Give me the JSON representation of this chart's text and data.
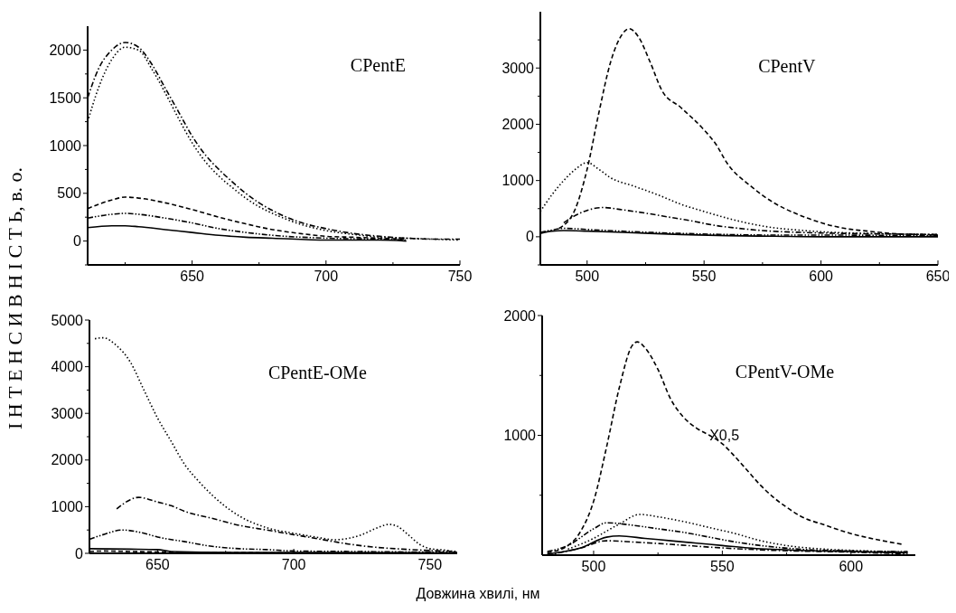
{
  "chart_data": [
    {
      "type": "line",
      "title": "CPentE",
      "ylabel": "І Н Т Е Н С И В Н І С Т Ь, в. о.",
      "xlim": [
        611,
        750
      ],
      "ylim": [
        -250,
        2250
      ],
      "xticks": [
        {
          "value": 625,
          "label": null
        },
        650,
        {
          "value": 675,
          "label": null
        },
        700,
        {
          "value": 725,
          "label": null
        },
        750
      ],
      "yticks": [
        {
          "value": -250,
          "label": null
        },
        0,
        {
          "value": 250,
          "label": null
        },
        500,
        {
          "value": 750,
          "label": null
        },
        1000,
        {
          "value": 1250,
          "label": null
        },
        1500,
        {
          "value": 1750,
          "label": null
        },
        2000
      ],
      "series": [
        {
          "color": "#000000",
          "line_style": "dashdot",
          "x": [
            611,
            615,
            620,
            625,
            630,
            635,
            640,
            645,
            650,
            655,
            660,
            665,
            670,
            675,
            680,
            690,
            700,
            710,
            720,
            730,
            740,
            750
          ],
          "values": [
            1500,
            1800,
            2000,
            2080,
            2030,
            1850,
            1600,
            1350,
            1100,
            900,
            750,
            620,
            500,
            400,
            320,
            200,
            130,
            80,
            50,
            30,
            20,
            20
          ]
        },
        {
          "color": "#000000",
          "line_style": "dotted",
          "x": [
            611,
            615,
            620,
            625,
            630,
            635,
            640,
            645,
            650,
            655,
            660,
            665,
            670,
            675,
            680,
            690,
            700,
            710,
            720,
            730,
            740,
            750
          ],
          "values": [
            1250,
            1600,
            1900,
            2030,
            2000,
            1800,
            1550,
            1280,
            1030,
            830,
            680,
            560,
            450,
            360,
            290,
            180,
            110,
            70,
            40,
            30,
            20,
            10
          ]
        },
        {
          "color": "#000000",
          "line_style": "dashed",
          "x": [
            611,
            620,
            625,
            630,
            640,
            650,
            660,
            670,
            680,
            690,
            700,
            710,
            720,
            730
          ],
          "values": [
            340,
            430,
            460,
            450,
            400,
            330,
            250,
            180,
            120,
            80,
            50,
            40,
            30,
            20
          ]
        },
        {
          "color": "#000000",
          "line_style": "dashdotdot",
          "x": [
            611,
            620,
            625,
            630,
            640,
            650,
            660,
            670,
            680,
            700,
            720,
            730
          ],
          "values": [
            240,
            280,
            290,
            280,
            240,
            190,
            130,
            90,
            60,
            30,
            20,
            10
          ]
        },
        {
          "color": "#000000",
          "line_style": "solid",
          "x": [
            611,
            620,
            625,
            630,
            640,
            650,
            660,
            670,
            680,
            700,
            720,
            730
          ],
          "values": [
            140,
            160,
            160,
            150,
            120,
            90,
            60,
            40,
            30,
            10,
            10,
            0
          ]
        }
      ]
    },
    {
      "type": "line",
      "title": "CPentV",
      "xlim": [
        480,
        650
      ],
      "ylim": [
        -500,
        4000
      ],
      "xticks": [
        500,
        {
          "value": 525,
          "label": null
        },
        550,
        {
          "value": 575,
          "label": null
        },
        600,
        {
          "value": 625,
          "label": null
        },
        650
      ],
      "yticks": [
        {
          "value": -500,
          "label": null
        },
        0,
        {
          "value": 500,
          "label": null
        },
        1000,
        {
          "value": 1500,
          "label": null
        },
        2000,
        {
          "value": 2500,
          "label": null
        },
        3000,
        {
          "value": 3500,
          "label": null
        }
      ],
      "series": [
        {
          "color": "#000000",
          "line_style": "dashed",
          "x": [
            488,
            495,
            500,
            505,
            510,
            515,
            518,
            522,
            527,
            532,
            540,
            550,
            555,
            560,
            570,
            580,
            590,
            600,
            610,
            620,
            630,
            640,
            650
          ],
          "values": [
            150,
            500,
            1200,
            2200,
            3100,
            3600,
            3700,
            3550,
            3100,
            2600,
            2300,
            1900,
            1650,
            1300,
            900,
            600,
            400,
            250,
            150,
            100,
            60,
            40,
            30
          ]
        },
        {
          "color": "#000000",
          "line_style": "dotted",
          "x": [
            480,
            485,
            490,
            495,
            500,
            505,
            510,
            520,
            530,
            540,
            550,
            560,
            570,
            580,
            590,
            600,
            620,
            650
          ],
          "values": [
            450,
            750,
            1000,
            1200,
            1320,
            1200,
            1050,
            900,
            750,
            580,
            450,
            330,
            230,
            160,
            120,
            90,
            60,
            40
          ]
        },
        {
          "color": "#000000",
          "line_style": "dashdot",
          "x": [
            490,
            495,
            500,
            507,
            515,
            525,
            535,
            545,
            555,
            565,
            575,
            590,
            610,
            630,
            650
          ],
          "values": [
            250,
            380,
            470,
            520,
            480,
            420,
            350,
            280,
            200,
            150,
            110,
            80,
            60,
            50,
            40
          ]
        },
        {
          "color": "#000000",
          "line_style": "solid",
          "x": [
            480,
            485,
            490,
            500,
            520,
            540,
            560,
            580,
            600,
            650
          ],
          "values": [
            60,
            100,
            110,
            100,
            70,
            40,
            20,
            10,
            0,
            0
          ]
        },
        {
          "color": "#000000",
          "line_style": "dashdotdot",
          "x": [
            480,
            485,
            490,
            500,
            520,
            540,
            560,
            580,
            600,
            650
          ],
          "values": [
            80,
            120,
            150,
            130,
            90,
            60,
            40,
            30,
            30,
            20
          ]
        }
      ]
    },
    {
      "type": "line",
      "title": "CPentE-OMe",
      "xlabel": "Довжина хвилі, нм",
      "xlim": [
        625,
        760
      ],
      "ylim": [
        0,
        5000
      ],
      "xticks": [
        650,
        {
          "value": 675,
          "label": null
        },
        700,
        {
          "value": 725,
          "label": null
        },
        750
      ],
      "yticks": [
        0,
        {
          "value": 500,
          "label": null
        },
        1000,
        {
          "value": 1500,
          "label": null
        },
        2000,
        {
          "value": 2500,
          "label": null
        },
        3000,
        {
          "value": 3500,
          "label": null
        },
        4000,
        {
          "value": 4500,
          "label": null
        },
        5000
      ],
      "series": [
        {
          "color": "#000000",
          "line_style": "dotted",
          "x": [
            627,
            630,
            635,
            640,
            645,
            650,
            655,
            660,
            665,
            670,
            675,
            680,
            690,
            700,
            710,
            715,
            720,
            725,
            730,
            735,
            738,
            742,
            746,
            750,
            755,
            760
          ],
          "values": [
            4600,
            4620,
            4450,
            4100,
            3500,
            2900,
            2400,
            1900,
            1550,
            1250,
            1000,
            800,
            550,
            430,
            330,
            290,
            320,
            400,
            530,
            620,
            580,
            400,
            200,
            100,
            70,
            30
          ]
        },
        {
          "color": "#000000",
          "line_style": "dashdot",
          "x": [
            635,
            640,
            643,
            650,
            655,
            660,
            670,
            680,
            690,
            700,
            710,
            720,
            730,
            740,
            750,
            760
          ],
          "values": [
            950,
            1150,
            1200,
            1100,
            1020,
            900,
            750,
            600,
            500,
            400,
            300,
            200,
            130,
            90,
            60,
            40
          ]
        },
        {
          "color": "#000000",
          "line_style": "dashdotdot",
          "x": [
            625,
            630,
            637,
            645,
            650,
            660,
            670,
            680,
            690,
            700,
            720,
            740,
            760
          ],
          "values": [
            300,
            400,
            500,
            430,
            350,
            250,
            150,
            100,
            80,
            50,
            40,
            30,
            20
          ]
        },
        {
          "color": "#000000",
          "line_style": "solid",
          "x": [
            625,
            640,
            650,
            655,
            680,
            700,
            760
          ],
          "values": [
            100,
            90,
            80,
            40,
            20,
            20,
            10
          ]
        },
        {
          "color": "#000000",
          "line_style": "dashed",
          "x": [
            625,
            630,
            640,
            660,
            700,
            760
          ],
          "values": [
            40,
            50,
            40,
            20,
            10,
            10
          ]
        }
      ]
    },
    {
      "type": "line",
      "title": "CPentV-OMe",
      "xlim": [
        480,
        625
      ],
      "ylim": [
        0,
        2000
      ],
      "annotations": [
        {
          "text": "X0,5",
          "x": 545,
          "y": 1000
        }
      ],
      "xticks": [
        500,
        {
          "value": 525,
          "label": null
        },
        550,
        {
          "value": 575,
          "label": null
        },
        600
      ],
      "yticks": [
        {
          "value": 500,
          "label": null
        },
        1000,
        {
          "value": 1500,
          "label": null
        },
        2000
      ],
      "series": [
        {
          "color": "#000000",
          "line_style": "dashed",
          "x": [
            482,
            490,
            495,
            500,
            505,
            510,
            515,
            517,
            520,
            525,
            530,
            535,
            540,
            545,
            550,
            555,
            560,
            565,
            570,
            575,
            580,
            590,
            600,
            610,
            620
          ],
          "values": [
            20,
            80,
            200,
            450,
            900,
            1400,
            1750,
            1780,
            1730,
            1550,
            1300,
            1150,
            1060,
            1000,
            930,
            820,
            700,
            580,
            480,
            400,
            330,
            250,
            180,
            130,
            90
          ]
        },
        {
          "color": "#000000",
          "line_style": "dotted",
          "x": [
            490,
            500,
            505,
            510,
            518,
            525,
            535,
            545,
            555,
            565,
            575,
            590,
            600,
            622
          ],
          "values": [
            50,
            140,
            200,
            260,
            340,
            320,
            280,
            230,
            180,
            120,
            80,
            50,
            40,
            25
          ]
        },
        {
          "color": "#000000",
          "line_style": "dashdotdot",
          "x": [
            482,
            490,
            500,
            505,
            515,
            525,
            535,
            545,
            555,
            565,
            580,
            600,
            622
          ],
          "values": [
            30,
            80,
            220,
            270,
            250,
            220,
            190,
            150,
            110,
            80,
            50,
            35,
            30
          ]
        },
        {
          "color": "#000000",
          "line_style": "solid",
          "x": [
            482,
            495,
            505,
            510,
            520,
            530,
            540,
            550,
            560,
            580,
            600,
            622
          ],
          "values": [
            10,
            60,
            150,
            160,
            140,
            120,
            100,
            80,
            60,
            40,
            30,
            20
          ]
        },
        {
          "color": "#000000",
          "line_style": "dashdot",
          "x": [
            482,
            495,
            505,
            515,
            530,
            550,
            570,
            600,
            622
          ],
          "values": [
            0,
            60,
            120,
            110,
            90,
            60,
            40,
            25,
            10
          ]
        }
      ]
    }
  ]
}
